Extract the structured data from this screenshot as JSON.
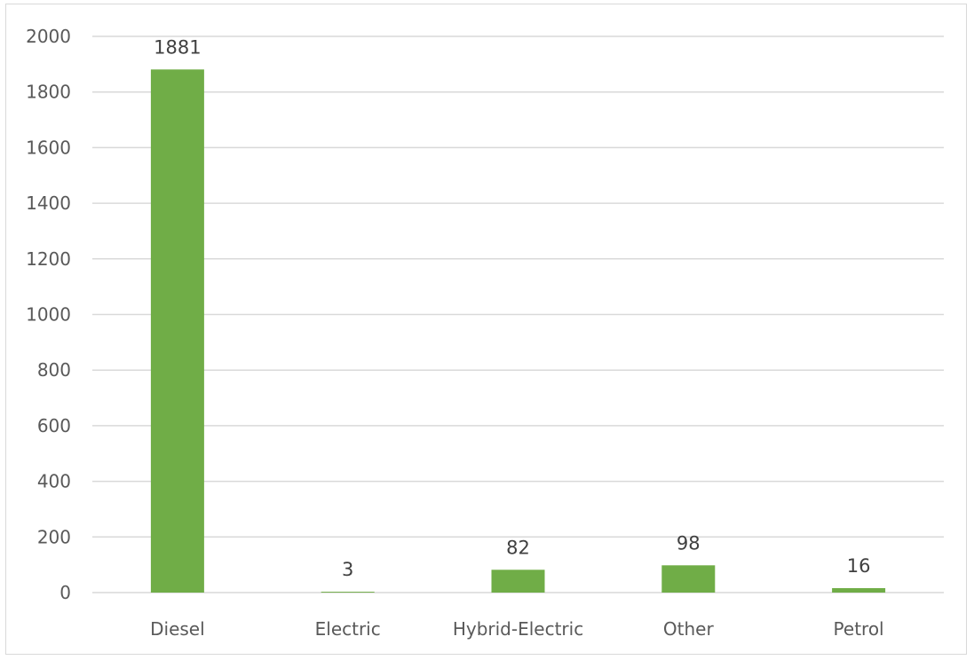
{
  "chart_data": {
    "type": "bar",
    "title": "",
    "xlabel": "",
    "ylabel": "",
    "categories": [
      "Diesel",
      "Electric",
      "Hybrid-Electric",
      "Other",
      "Petrol"
    ],
    "values": [
      1881,
      3,
      82,
      98,
      16
    ],
    "data_labels": [
      "1881",
      "3",
      "82",
      "98",
      "16"
    ],
    "ylim": [
      0,
      2000
    ],
    "yticks": [
      0,
      200,
      400,
      600,
      800,
      1000,
      1200,
      1400,
      1600,
      1800,
      2000
    ],
    "grid": true,
    "legend": "none",
    "bar_color": "#70ad47",
    "gridline_color": "#d9d9d9"
  }
}
